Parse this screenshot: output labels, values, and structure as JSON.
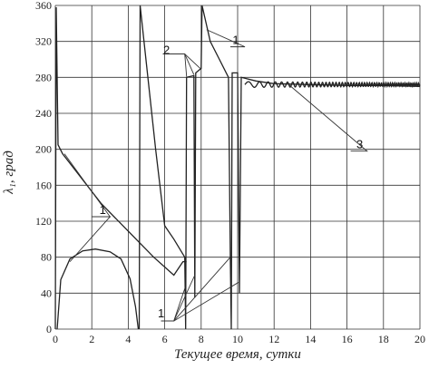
{
  "chart_data": {
    "type": "line",
    "title": "",
    "xlabel": "Текущее время, сутки",
    "ylabel": "λ₁, град",
    "xlim": [
      0,
      20
    ],
    "ylim": [
      0,
      360
    ],
    "x_ticks": [
      0,
      2,
      4,
      6,
      8,
      10,
      12,
      14,
      16,
      18,
      20
    ],
    "y_ticks": [
      0,
      40,
      80,
      120,
      160,
      200,
      240,
      280,
      320,
      360
    ],
    "grid": true,
    "legend": "none",
    "series": [
      {
        "points": [
          [
            0,
            0
          ],
          [
            0.05,
            358
          ],
          [
            0.15,
            205
          ],
          [
            0.4,
            195
          ],
          [
            2.5,
            140
          ],
          [
            5.4,
            80
          ],
          [
            6.5,
            60
          ],
          [
            7.0,
            75
          ],
          [
            7.2,
            75
          ]
        ]
      },
      {
        "points": [
          [
            0.1,
            0
          ],
          [
            0.3,
            55
          ],
          [
            0.8,
            78
          ],
          [
            1.5,
            87
          ],
          [
            2.2,
            89
          ],
          [
            3.0,
            86
          ],
          [
            3.6,
            78
          ],
          [
            4.1,
            56
          ],
          [
            4.4,
            25
          ],
          [
            4.55,
            0
          ]
        ]
      },
      {
        "points": [
          [
            4.6,
            0
          ],
          [
            4.65,
            360
          ],
          [
            5.5,
            200
          ],
          [
            6.0,
            115
          ],
          [
            6.5,
            100
          ],
          [
            7.1,
            80
          ],
          [
            7.15,
            0
          ],
          [
            7.2,
            280
          ],
          [
            7.6,
            282
          ],
          [
            7.65,
            35
          ],
          [
            7.7,
            285
          ],
          [
            8.0,
            290
          ],
          [
            8.05,
            360
          ],
          [
            8.5,
            320
          ],
          [
            9.0,
            300
          ],
          [
            9.5,
            280
          ],
          [
            9.6,
            75
          ],
          [
            9.65,
            0
          ],
          [
            9.7,
            285
          ],
          [
            10.0,
            285
          ],
          [
            10.1,
            40
          ],
          [
            10.2,
            280
          ],
          [
            11.0,
            276
          ],
          [
            12.0,
            273
          ],
          [
            14.0,
            272
          ],
          [
            16.0,
            271
          ],
          [
            18.0,
            271
          ],
          [
            20.0,
            270
          ]
        ]
      }
    ],
    "annotations": [
      {
        "label": "1",
        "x": 2.6,
        "y": 125
      },
      {
        "label": "2",
        "x": 6.1,
        "y": 303
      },
      {
        "label": "1",
        "x": 9.9,
        "y": 314
      },
      {
        "label": "3",
        "x": 16.7,
        "y": 198
      },
      {
        "label": "1",
        "x": 5.8,
        "y": 10
      }
    ]
  }
}
